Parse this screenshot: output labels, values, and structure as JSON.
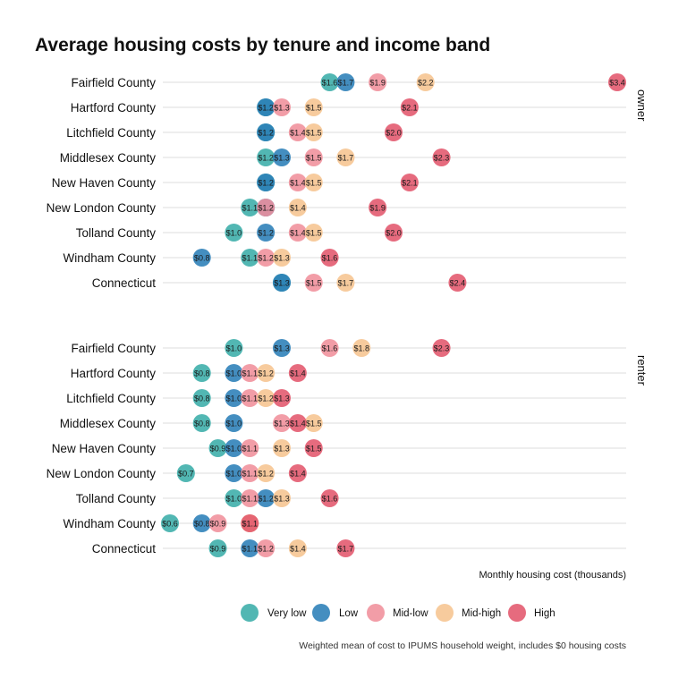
{
  "chart_data": {
    "type": "scatter",
    "title": "Average housing costs by tenure and income band",
    "xlabel": "Monthly housing cost (thousands)",
    "caption": "Weighted mean of cost to IPUMS household weight, includes $0 housing costs",
    "xlim": [
      0.55,
      3.45
    ],
    "grid": true,
    "legend_position": "bottom",
    "label_prefix": "$",
    "categories": [
      "Fairfield County",
      "Hartford County",
      "Litchfield County",
      "Middlesex County",
      "New Haven County",
      "New London County",
      "Tolland County",
      "Windham County",
      "Connecticut"
    ],
    "bands": [
      {
        "name": "Very low",
        "color": "#3aada8"
      },
      {
        "name": "Low",
        "color": "#2a7eb7"
      },
      {
        "name": "Mid-low",
        "color": "#f08f9b"
      },
      {
        "name": "Mid-high",
        "color": "#f6c48f"
      },
      {
        "name": "High",
        "color": "#e3576c"
      }
    ],
    "facets": [
      {
        "name": "owner",
        "rows": [
          {
            "label": "Fairfield County",
            "values": [
              1.6,
              1.7,
              1.9,
              2.2,
              3.4
            ]
          },
          {
            "label": "Hartford County",
            "values": [
              1.2,
              1.2,
              1.3,
              1.5,
              2.1
            ]
          },
          {
            "label": "Litchfield County",
            "values": [
              1.2,
              1.2,
              1.4,
              1.5,
              2.0
            ]
          },
          {
            "label": "Middlesex County",
            "values": [
              1.2,
              1.3,
              1.5,
              1.7,
              2.3
            ]
          },
          {
            "label": "New Haven County",
            "values": [
              1.2,
              1.2,
              1.4,
              1.5,
              2.1
            ]
          },
          {
            "label": "New London County",
            "values": [
              1.1,
              1.2,
              1.2,
              1.4,
              1.9
            ]
          },
          {
            "label": "Tolland County",
            "values": [
              1.0,
              1.2,
              1.4,
              1.5,
              2.0
            ]
          },
          {
            "label": "Windham County",
            "values": [
              1.1,
              0.8,
              1.2,
              1.3,
              1.6
            ]
          },
          {
            "label": "Connecticut",
            "values": [
              1.3,
              1.3,
              1.5,
              1.7,
              2.4
            ]
          }
        ]
      },
      {
        "name": "renter",
        "rows": [
          {
            "label": "Fairfield County",
            "values": [
              1.0,
              1.3,
              1.6,
              1.8,
              2.3
            ]
          },
          {
            "label": "Hartford County",
            "values": [
              0.8,
              1.0,
              1.1,
              1.2,
              1.4
            ]
          },
          {
            "label": "Litchfield County",
            "values": [
              0.8,
              1.0,
              1.1,
              1.2,
              1.3
            ]
          },
          {
            "label": "Middlesex County",
            "values": [
              0.8,
              1.0,
              1.3,
              1.5,
              1.4
            ]
          },
          {
            "label": "New Haven County",
            "values": [
              0.9,
              1.0,
              1.1,
              1.3,
              1.5
            ]
          },
          {
            "label": "New London County",
            "values": [
              0.7,
              1.0,
              1.1,
              1.2,
              1.4
            ]
          },
          {
            "label": "Tolland County",
            "values": [
              1.0,
              1.2,
              1.1,
              1.3,
              1.6
            ]
          },
          {
            "label": "Windham County",
            "values": [
              0.6,
              0.8,
              0.9,
              1.1,
              1.1
            ]
          },
          {
            "label": "Connecticut",
            "values": [
              0.9,
              1.1,
              1.2,
              1.4,
              1.7
            ]
          }
        ]
      }
    ]
  }
}
